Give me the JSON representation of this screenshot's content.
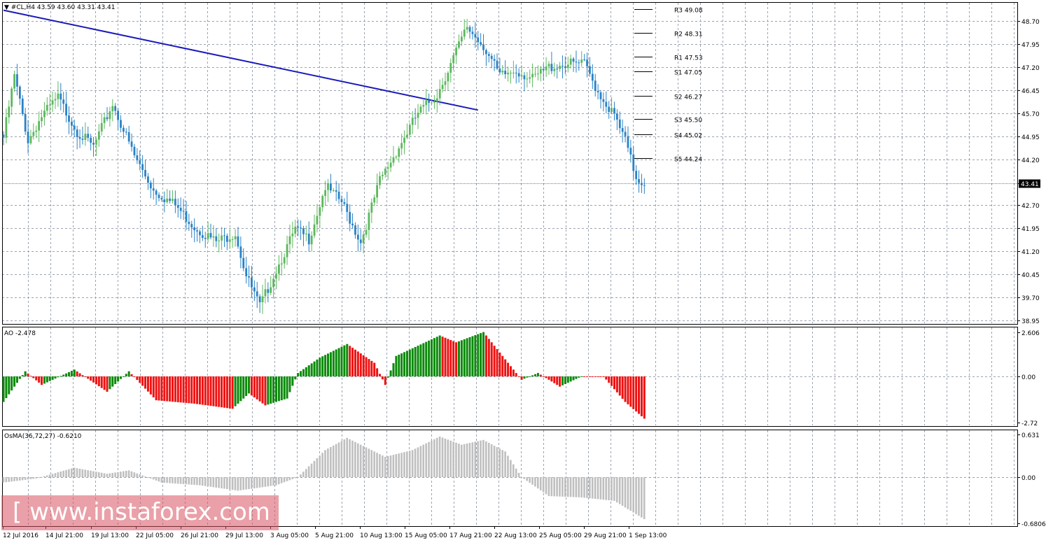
{
  "header": {
    "symbol_line": "▼ #CL,H4  43.59 43.60 43.31 43.41"
  },
  "watermark": "[ www.instaforex.com ]",
  "colors": {
    "bull": "#5cb85c",
    "bear": "#2a82c5",
    "trendline": "#1a1aba",
    "ao_up": "#0a8a0a",
    "ao_down": "#ee1111",
    "osma": "#bfbfbf",
    "grid": "#9aa3b0"
  },
  "chart_data": [
    {
      "type": "candlestick",
      "title": "#CL,H4",
      "ohlc_label": "43.59 43.60 43.31 43.41",
      "ylim": [
        38.95,
        49.0
      ],
      "y_ticks": [
        "48.70",
        "47.95",
        "47.20",
        "46.45",
        "45.70",
        "44.95",
        "44.20",
        "43.41",
        "42.70",
        "41.95",
        "41.20",
        "40.45",
        "39.70",
        "38.95"
      ],
      "current_price": 43.41,
      "x_labels": [
        "12 Jul 2016",
        "14 Jul 21:00",
        "19 Jul 13:00",
        "22 Jul 05:00",
        "26 Jul 21:00",
        "29 Jul 13:00",
        "3 Aug 05:00",
        "5 Aug 21:00",
        "10 Aug 13:00",
        "15 Aug 05:00",
        "17 Aug 21:00",
        "22 Aug 13:00",
        "25 Aug 05:00",
        "29 Aug 21:00",
        "1 Sep 13:00"
      ],
      "close_path": [
        {
          "bar": 0,
          "close": 44.9
        },
        {
          "bar": 4,
          "close": 46.9
        },
        {
          "bar": 9,
          "close": 44.8
        },
        {
          "bar": 14,
          "close": 45.6
        },
        {
          "bar": 20,
          "close": 46.2
        },
        {
          "bar": 27,
          "close": 45.1
        },
        {
          "bar": 33,
          "close": 44.6
        },
        {
          "bar": 40,
          "close": 46.0
        },
        {
          "bar": 48,
          "close": 44.3
        },
        {
          "bar": 55,
          "close": 43.2
        },
        {
          "bar": 63,
          "close": 42.7
        },
        {
          "bar": 70,
          "close": 42.0
        },
        {
          "bar": 78,
          "close": 41.5
        },
        {
          "bar": 85,
          "close": 41.8
        },
        {
          "bar": 89,
          "close": 40.4
        },
        {
          "bar": 94,
          "close": 39.4
        },
        {
          "bar": 100,
          "close": 40.6
        },
        {
          "bar": 107,
          "close": 41.9
        },
        {
          "bar": 112,
          "close": 41.6
        },
        {
          "bar": 118,
          "close": 43.3
        },
        {
          "bar": 124,
          "close": 42.8
        },
        {
          "bar": 131,
          "close": 41.5
        },
        {
          "bar": 138,
          "close": 43.5
        },
        {
          "bar": 145,
          "close": 44.6
        },
        {
          "bar": 152,
          "close": 45.7
        },
        {
          "bar": 159,
          "close": 46.3
        },
        {
          "bar": 165,
          "close": 47.5
        },
        {
          "bar": 170,
          "close": 48.5
        },
        {
          "bar": 176,
          "close": 47.9
        },
        {
          "bar": 182,
          "close": 46.9
        },
        {
          "bar": 188,
          "close": 47.1
        },
        {
          "bar": 194,
          "close": 46.8
        },
        {
          "bar": 200,
          "close": 47.2
        },
        {
          "bar": 206,
          "close": 47.3
        },
        {
          "bar": 213,
          "close": 47.3
        },
        {
          "bar": 218,
          "close": 46.4
        },
        {
          "bar": 224,
          "close": 45.6
        },
        {
          "bar": 228,
          "close": 44.8
        },
        {
          "bar": 232,
          "close": 43.6
        },
        {
          "bar": 235,
          "close": 43.41
        }
      ],
      "trendline": [
        {
          "bar": 0,
          "price": 49.05
        },
        {
          "bar": 174,
          "price": 45.8
        }
      ],
      "pivot_levels": [
        {
          "label": "R3 49.08",
          "value": 49.08
        },
        {
          "label": "R2 48.31",
          "value": 48.31
        },
        {
          "label": "R1 47.53",
          "value": 47.53
        },
        {
          "label": "S1 47.05",
          "value": 47.05
        },
        {
          "label": "S2 46.27",
          "value": 46.27
        },
        {
          "label": "S3 45.50",
          "value": 45.5
        },
        {
          "label": "S4 45.02",
          "value": 45.02
        },
        {
          "label": "S5 44.24",
          "value": 44.24
        }
      ]
    },
    {
      "type": "bar",
      "title": "AO -2.478",
      "ylim": [
        -2.72,
        2.606
      ],
      "y_ticks": [
        "2.606",
        "0.00",
        "-2.72"
      ],
      "value_path": [
        {
          "bar": 0,
          "value": -1.5
        },
        {
          "bar": 8,
          "value": 0.3
        },
        {
          "bar": 14,
          "value": -0.5
        },
        {
          "bar": 26,
          "value": 0.4
        },
        {
          "bar": 38,
          "value": -0.9
        },
        {
          "bar": 46,
          "value": 0.3
        },
        {
          "bar": 56,
          "value": -1.4
        },
        {
          "bar": 70,
          "value": -1.6
        },
        {
          "bar": 84,
          "value": -1.9
        },
        {
          "bar": 90,
          "value": -1.0
        },
        {
          "bar": 96,
          "value": -1.7
        },
        {
          "bar": 104,
          "value": -1.3
        },
        {
          "bar": 108,
          "value": 0.2
        },
        {
          "bar": 116,
          "value": 1.1
        },
        {
          "bar": 126,
          "value": 1.9
        },
        {
          "bar": 136,
          "value": 0.8
        },
        {
          "bar": 140,
          "value": -0.5
        },
        {
          "bar": 144,
          "value": 1.2
        },
        {
          "bar": 160,
          "value": 2.4
        },
        {
          "bar": 166,
          "value": 2.0
        },
        {
          "bar": 176,
          "value": 2.6
        },
        {
          "bar": 184,
          "value": 1.0
        },
        {
          "bar": 190,
          "value": -0.2
        },
        {
          "bar": 196,
          "value": 0.2
        },
        {
          "bar": 204,
          "value": -0.6
        },
        {
          "bar": 212,
          "value": 0.0
        },
        {
          "bar": 220,
          "value": 0.0
        },
        {
          "bar": 228,
          "value": -1.5
        },
        {
          "bar": 235,
          "value": -2.478
        }
      ]
    },
    {
      "type": "bar",
      "title": "OsMA(36,72,27) -0.6210",
      "ylim": [
        -0.6806,
        0.631
      ],
      "y_ticks": [
        "0.631",
        "0.00",
        "-0.6806"
      ],
      "value_path": [
        {
          "bar": 0,
          "value": -0.08
        },
        {
          "bar": 12,
          "value": -0.02
        },
        {
          "bar": 26,
          "value": 0.14
        },
        {
          "bar": 38,
          "value": 0.05
        },
        {
          "bar": 46,
          "value": 0.1
        },
        {
          "bar": 58,
          "value": -0.08
        },
        {
          "bar": 72,
          "value": -0.12
        },
        {
          "bar": 86,
          "value": -0.2
        },
        {
          "bar": 100,
          "value": -0.12
        },
        {
          "bar": 108,
          "value": 0.0
        },
        {
          "bar": 118,
          "value": 0.4
        },
        {
          "bar": 126,
          "value": 0.58
        },
        {
          "bar": 140,
          "value": 0.3
        },
        {
          "bar": 150,
          "value": 0.4
        },
        {
          "bar": 160,
          "value": 0.6
        },
        {
          "bar": 168,
          "value": 0.48
        },
        {
          "bar": 176,
          "value": 0.55
        },
        {
          "bar": 184,
          "value": 0.38
        },
        {
          "bar": 190,
          "value": 0.0
        },
        {
          "bar": 200,
          "value": -0.28
        },
        {
          "bar": 212,
          "value": -0.3
        },
        {
          "bar": 224,
          "value": -0.35
        },
        {
          "bar": 235,
          "value": -0.621
        }
      ]
    }
  ]
}
